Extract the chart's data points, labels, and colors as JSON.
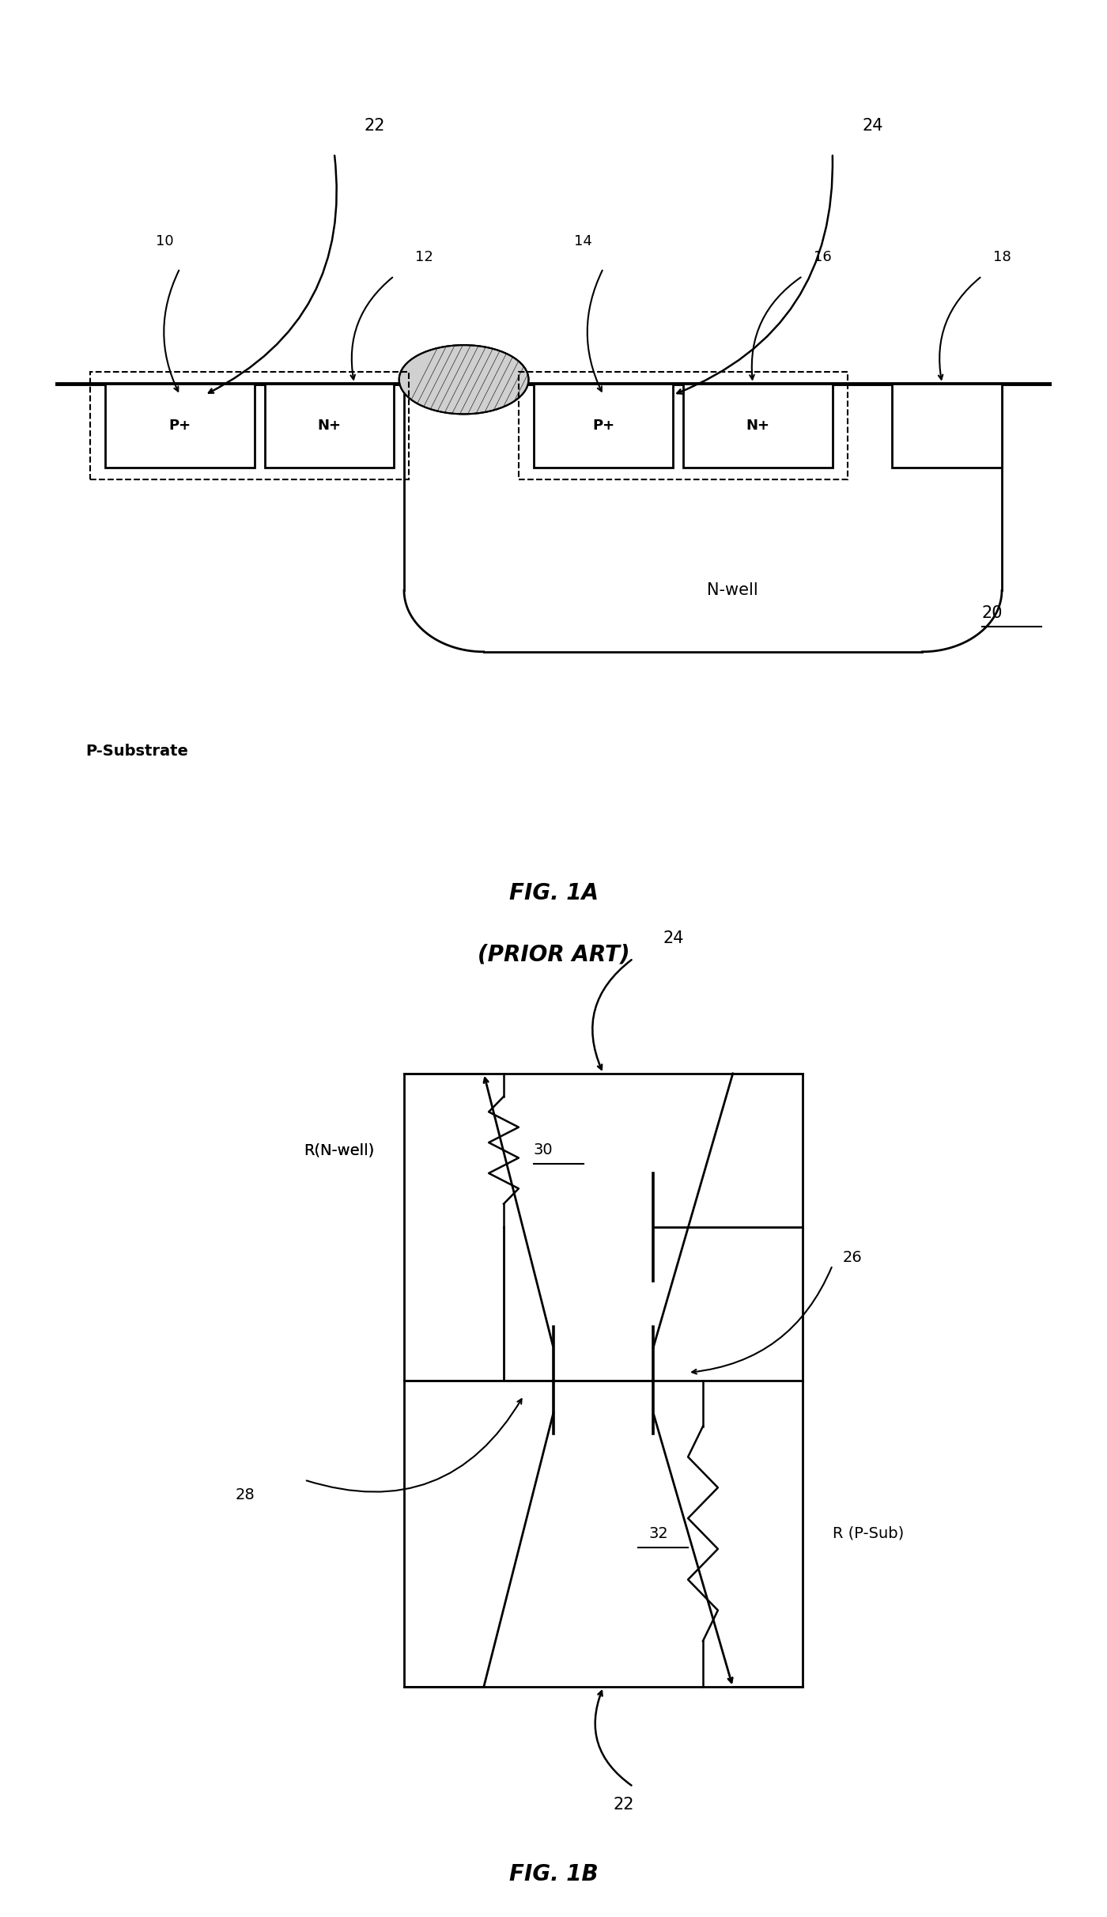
{
  "fig_width": 14.0,
  "fig_height": 24.23,
  "bg_color": "#ffffff",
  "fig1a_title": "FIG. 1A",
  "fig1b_title": "FIG. 1B",
  "prior_art": "(PRIOR ART)",
  "labels": {
    "p_substrate": "P-Substrate",
    "n_well": "N-well",
    "p_plus_left": "P+",
    "n_plus_left": "N+",
    "p_plus_right": "P+",
    "n_plus_right": "N+",
    "num_10": "10",
    "num_12": "12",
    "num_14": "14",
    "num_16": "16",
    "num_18": "18",
    "num_20": "20",
    "num_22": "22",
    "num_24": "24",
    "num_22b": "22",
    "num_24b": "24",
    "num_26": "26",
    "num_28": "28",
    "num_30": "30",
    "num_32": "32",
    "r_nwell": "R(N-well)",
    "r_psub": "R (P-Sub)"
  }
}
